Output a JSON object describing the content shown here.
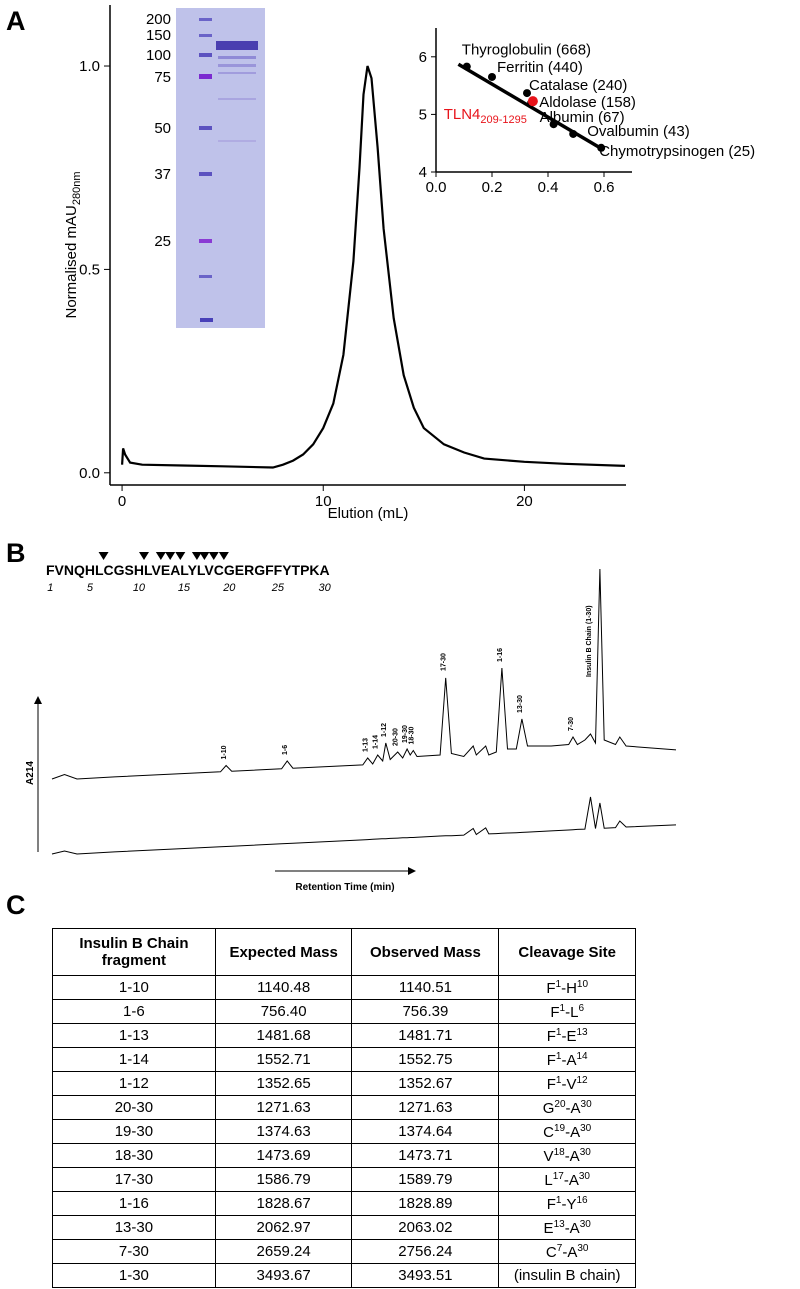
{
  "panel_labels": [
    "A",
    "B",
    "C"
  ],
  "gel": {
    "ladder": [
      "200",
      "150",
      "100",
      "75",
      "50",
      "37",
      "25"
    ]
  },
  "chart_data": [
    {
      "type": "line",
      "y_label": "Normalised mAU",
      "y_label_sub": "280nm",
      "x_label": "Elution (mL)",
      "x": [
        0,
        0.05,
        0.15,
        0.4,
        1,
        3,
        5,
        7.5,
        8,
        8.5,
        9,
        9.5,
        10,
        10.5,
        11,
        11.5,
        11.8,
        12,
        12.2,
        12.4,
        12.7,
        13,
        13.5,
        14,
        14.5,
        15,
        16,
        17,
        18,
        20,
        22,
        25
      ],
      "series": [
        {
          "color": "#000000",
          "values": [
            0.02,
            0.06,
            0.045,
            0.025,
            0.02,
            0.018,
            0.016,
            0.013,
            0.02,
            0.03,
            0.045,
            0.07,
            0.11,
            0.17,
            0.29,
            0.52,
            0.75,
            0.93,
            1.0,
            0.97,
            0.8,
            0.6,
            0.38,
            0.24,
            0.16,
            0.11,
            0.07,
            0.05,
            0.035,
            0.027,
            0.022,
            0.017
          ]
        }
      ],
      "xlim": [
        -0.6,
        25
      ],
      "ylim": [
        -0.03,
        1.15
      ],
      "xticks": [
        0,
        10,
        20
      ],
      "yticks": [
        {
          "value": 0,
          "label": "0.0"
        },
        {
          "value": 0.5,
          "label": "0.5"
        },
        {
          "value": 1,
          "label": "1.0"
        }
      ]
    },
    {
      "type": "scatter",
      "series": [
        {
          "color": "#000000",
          "x": [
            0.11,
            0.2,
            0.325,
            0.34,
            0.42,
            0.49,
            0.59
          ],
          "values": [
            5.83,
            5.65,
            5.37,
            5.2,
            4.83,
            4.66,
            4.42
          ],
          "labels": [
            "Thyroglobulin (668)",
            "Ferritin (440)",
            "Catalase (240)",
            "Aldolase (158)",
            "Albumin (67)",
            "Ovalbumin (43)",
            "Chymotrypsinogen (25)"
          ]
        },
        {
          "color": "#e8141b",
          "x": [
            0.346
          ],
          "values": [
            5.23
          ],
          "labels": [
            "TLN4"
          ],
          "label_sub": "209-1295"
        }
      ],
      "fit": {
        "x": [
          0.08,
          0.6
        ],
        "values": [
          5.87,
          4.38
        ]
      },
      "xlim": [
        0,
        0.7
      ],
      "ylim": [
        4,
        6.5
      ],
      "xticks": [
        {
          "value": 0,
          "label": "0.0"
        },
        0.2,
        0.4,
        0.6
      ],
      "yticks": [
        4,
        5,
        6
      ]
    },
    {
      "type": "line",
      "y_label": "A214",
      "x_label": "Retention Time (min)",
      "x": [
        0,
        2,
        4,
        10,
        20,
        27,
        27.9,
        28.8,
        36.8,
        37.7,
        38.6,
        49.8,
        50.6,
        51.4,
        52.2,
        53,
        53.5,
        54.2,
        55.4,
        56.2,
        56.9,
        57.4,
        57.9,
        58.5,
        62.2,
        63.1,
        64,
        66,
        67.5,
        68,
        69.5,
        70,
        71.2,
        72.1,
        73,
        74.4,
        75.3,
        76.2,
        80,
        82.8,
        83.5,
        84.2,
        85.4,
        86.3,
        87.1,
        87.8,
        88.5,
        90.3,
        91,
        92,
        100
      ],
      "series": [
        {
          "color": "#000000",
          "values": [
            27,
            28.5,
            27,
            27.7,
            28.7,
            29.4,
            31.5,
            29.6,
            30.4,
            33,
            30.6,
            31.7,
            34,
            32,
            35,
            33,
            39,
            33.5,
            36,
            34,
            37,
            35,
            36.5,
            34.5,
            35,
            60.7,
            35.5,
            34.5,
            38,
            35,
            38,
            35,
            36,
            64,
            37,
            37,
            47,
            38,
            38,
            38.5,
            41,
            38.5,
            40,
            42,
            39,
            97,
            40,
            38.5,
            41,
            38,
            36.7
          ]
        },
        {
          "color": "#000000",
          "values": [
            2,
            3,
            2,
            2.7,
            3.7,
            4.4,
            4.5,
            4.6,
            5.4,
            5.5,
            5.6,
            6.7,
            6.8,
            6.9,
            7,
            7.1,
            7.1,
            7.2,
            7.3,
            7.4,
            7.4,
            7.5,
            7.5,
            7.6,
            8,
            8.1,
            8.1,
            8.3,
            10.5,
            8.5,
            10.7,
            8.7,
            8.8,
            8.9,
            9,
            9.1,
            9.2,
            9.3,
            9.7,
            10,
            10.1,
            10.2,
            10.3,
            21,
            10.5,
            19,
            10.6,
            10.8,
            13,
            11,
            11.7
          ]
        }
      ],
      "xlim": [
        0,
        100
      ],
      "ylim": [
        0,
        100
      ],
      "annotations": [
        {
          "text": "1-10",
          "x": 27.9,
          "y": 33.5
        },
        {
          "text": "1-6",
          "x": 37.7,
          "y": 35
        },
        {
          "text": "1-13",
          "x": 50.6,
          "y": 36
        },
        {
          "text": "1-14",
          "x": 52.2,
          "y": 37
        },
        {
          "text": "1-12",
          "x": 53.5,
          "y": 41
        },
        {
          "text": "20-30",
          "x": 55.4,
          "y": 38
        },
        {
          "text": "19-30",
          "x": 56.9,
          "y": 39
        },
        {
          "text": "18-30",
          "x": 57.9,
          "y": 38.5
        },
        {
          "text": "17-30",
          "x": 63.1,
          "y": 63
        },
        {
          "text": "1-16",
          "x": 72.1,
          "y": 66
        },
        {
          "text": "13-30",
          "x": 75.3,
          "y": 49
        },
        {
          "text": "7-30",
          "x": 83.5,
          "y": 43
        },
        {
          "text": "Insulin B Chain (1-30)",
          "x": 86.4,
          "y": 61
        }
      ]
    }
  ],
  "sequence": {
    "residues": "FVNQHLCGSHLVEALYLVCGERGFFYTPKA",
    "position_labels": [
      1,
      5,
      10,
      15,
      20,
      25,
      30
    ],
    "cleavage_after": [
      6,
      10,
      12,
      13,
      14,
      16,
      17,
      18,
      19
    ]
  },
  "table": {
    "header": [
      "Insulin B Chain fragment",
      "Expected Mass",
      "Observed Mass",
      "Cleavage Site"
    ],
    "rows": [
      [
        "1-10",
        "1140.48",
        "1140.51",
        [
          "F",
          "1",
          "-H",
          "10"
        ]
      ],
      [
        "1-6",
        "756.40",
        "756.39",
        [
          "F",
          "1",
          "-L",
          "6"
        ]
      ],
      [
        "1-13",
        "1481.68",
        "1481.71",
        [
          "F",
          "1",
          "-E",
          "13"
        ]
      ],
      [
        "1-14",
        "1552.71",
        "1552.75",
        [
          "F",
          "1",
          "-A",
          "14"
        ]
      ],
      [
        "1-12",
        "1352.65",
        "1352.67",
        [
          "F",
          "1",
          "-V",
          "12"
        ]
      ],
      [
        "20-30",
        "1271.63",
        "1271.63",
        [
          "G",
          "20",
          "-A",
          "30"
        ]
      ],
      [
        "19-30",
        "1374.63",
        "1374.64",
        [
          "C",
          "19",
          "-A",
          "30"
        ]
      ],
      [
        "18-30",
        "1473.69",
        "1473.71",
        [
          "V",
          "18",
          "-A",
          "30"
        ]
      ],
      [
        "17-30",
        "1586.79",
        "1589.79",
        [
          "L",
          "17",
          "-A",
          "30"
        ]
      ],
      [
        "1-16",
        "1828.67",
        "1828.89",
        [
          "F",
          "1",
          "-Y",
          "16"
        ]
      ],
      [
        "13-30",
        "2062.97",
        "2063.02",
        [
          "E",
          "13",
          "-A",
          "30"
        ]
      ],
      [
        "7-30",
        "2659.24",
        "2756.24",
        [
          "C",
          "7",
          "-A",
          "30"
        ]
      ],
      [
        "1-30",
        "3493.67",
        "3493.51",
        [
          "(insulin B chain)"
        ]
      ]
    ]
  }
}
